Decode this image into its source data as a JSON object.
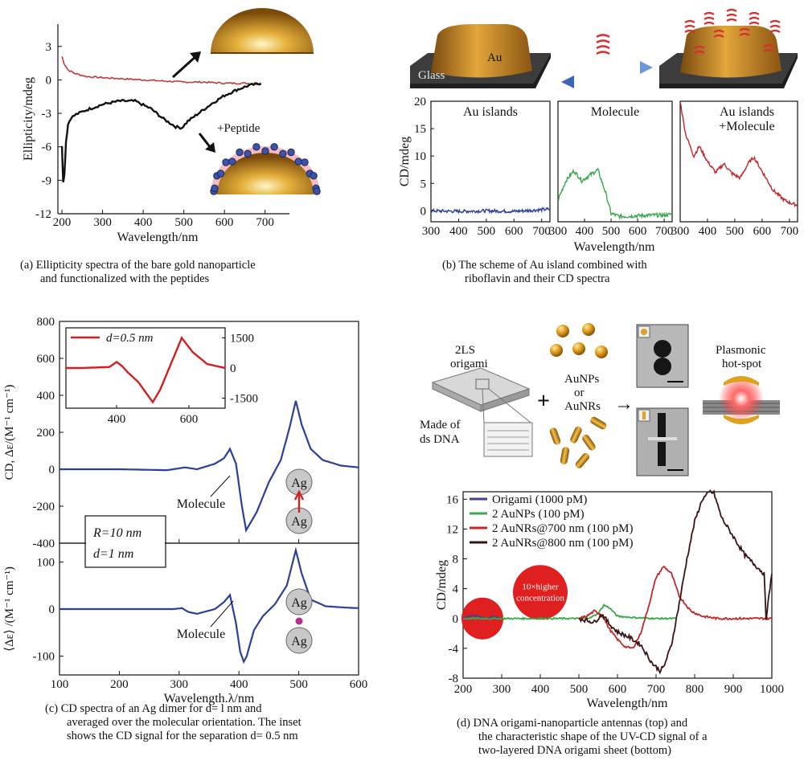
{
  "colors": {
    "red": "#c0393b",
    "black": "#111111",
    "blue": "#2c3f9a",
    "green": "#3aa84a",
    "purple": "#4a3f8e",
    "dred": "#c0282a",
    "brown": "#3a1414",
    "gold": "#c88a1a"
  },
  "panels": {
    "a": {
      "caption": [
        "(a) Ellipticity spectra of the bare gold nanoparticle",
        "and functionalized with the peptides"
      ],
      "annotation": "+Peptide"
    },
    "b": {
      "caption": [
        "(b) The scheme of Au island combined with",
        "riboflavin and their CD spectra"
      ],
      "scheme_labels": {
        "glass": "Glass",
        "au": "Au"
      }
    },
    "c": {
      "caption": [
        "(c) CD spectra of an Ag dimer for d= l nm and",
        "averaged over the molecular orientation. The inset",
        "shows the CD signal for the separation d= 0.5 nm"
      ],
      "molecule_label": "Molecule",
      "params": [
        "R=10 nm",
        "d=1 nm"
      ],
      "ag_label": "Ag"
    },
    "d": {
      "caption": [
        "(d) DNA origami-nanoparticle antennas (top) and",
        "the characteristic shape of the UV-CD signal of a",
        "two-layered DNA origami sheet (bottom)"
      ],
      "scheme_labels": {
        "origami": [
          "2LS",
          "origami"
        ],
        "dsdna": [
          "Made of",
          "ds DNA"
        ],
        "particles": [
          "AuNPs",
          "or",
          "AuNRs"
        ],
        "hotspot": [
          "Plasmonic",
          "hot-spot"
        ],
        "plus": "+",
        "arrow": "→"
      },
      "circle_note": [
        "10×higher",
        "concentration"
      ]
    }
  },
  "chart_data": [
    {
      "id": "a",
      "type": "line",
      "xlabel": "Wavelength/nm",
      "ylabel": "Ellipticity/mdeg",
      "xlim": [
        190,
        760
      ],
      "ylim": [
        -12,
        5
      ],
      "xticks": [
        200,
        300,
        400,
        500,
        600,
        700
      ],
      "yticks": [
        3,
        0,
        -3,
        -6,
        -9,
        -12
      ],
      "series": [
        {
          "color": "#c0393b",
          "x": [
            200,
            205,
            215,
            230,
            260,
            300,
            350,
            400,
            450,
            500,
            550,
            600,
            650,
            690
          ],
          "y": [
            2.1,
            1.5,
            0.9,
            0.6,
            0.3,
            0.2,
            0.1,
            0.0,
            -0.1,
            -0.2,
            -0.2,
            -0.3,
            -0.3,
            -0.4
          ]
        },
        {
          "color": "#111111",
          "x": [
            200,
            203,
            206,
            210,
            215,
            222,
            235,
            260,
            300,
            340,
            380,
            420,
            450,
            480,
            495,
            510,
            540,
            570,
            600,
            630,
            660,
            690
          ],
          "y": [
            -6,
            -9.1,
            -8.5,
            -5.5,
            -4.0,
            -3.4,
            -3.1,
            -2.7,
            -2.2,
            -1.9,
            -1.9,
            -2.6,
            -3.5,
            -4.2,
            -4.3,
            -3.7,
            -2.9,
            -2.1,
            -1.4,
            -0.9,
            -0.5,
            -0.3
          ]
        }
      ]
    },
    {
      "id": "b",
      "type": "line",
      "ylabel": "CD/mdeg",
      "xlabel": "Wavelength/nm",
      "ylim": [
        -2,
        20
      ],
      "yticks": [
        0,
        5,
        10,
        15,
        20
      ],
      "xticks": [
        300,
        400,
        500,
        600,
        700
      ],
      "xlim": [
        300,
        730
      ],
      "subplots": [
        {
          "title": [
            "Au islands"
          ],
          "color": "#2c3f9a",
          "x": [
            300,
            400,
            500,
            600,
            700,
            730
          ],
          "y": [
            0.0,
            -0.1,
            0.0,
            -0.1,
            0.2,
            0.3
          ]
        },
        {
          "title": [
            "Molecule"
          ],
          "color": "#3aa84a",
          "x": [
            300,
            330,
            360,
            390,
            420,
            450,
            480,
            500,
            530,
            560,
            600,
            650,
            700,
            730
          ],
          "y": [
            2.0,
            5.5,
            7.3,
            5.5,
            6.5,
            7.5,
            3.2,
            -0.5,
            -1.0,
            -1.0,
            -0.9,
            -0.8,
            -0.8,
            -0.6
          ]
        },
        {
          "title": [
            "Au islands",
            "+Molecule"
          ],
          "color": "#c0282a",
          "x": [
            300,
            320,
            350,
            370,
            400,
            430,
            460,
            490,
            520,
            550,
            570,
            600,
            640,
            680,
            700,
            730
          ],
          "y": [
            20,
            14,
            10,
            11.8,
            9.0,
            7.0,
            8.6,
            6.8,
            6.0,
            8.7,
            9.8,
            7.2,
            3.8,
            2.0,
            1.5,
            1.0
          ]
        }
      ]
    },
    {
      "id": "c",
      "type": "line",
      "xlabel": "Wavelength.λ/nm",
      "xlim": [
        100,
        600
      ],
      "xticks": [
        100,
        200,
        300,
        400,
        500,
        600
      ],
      "subplots": [
        {
          "ylabel": "CD, Δε/(M⁻¹ cm⁻¹)",
          "ylim": [
            -400,
            800
          ],
          "yticks": [
            800,
            600,
            400,
            200,
            0,
            -200,
            -400
          ],
          "color": "#2c3f9a",
          "x": [
            100,
            200,
            280,
            300,
            310,
            330,
            360,
            375,
            385,
            395,
            405,
            412,
            430,
            450,
            470,
            485,
            495,
            505,
            520,
            540,
            570,
            600
          ],
          "y": [
            0,
            0,
            -5,
            5,
            10,
            0,
            30,
            60,
            110,
            30,
            -200,
            -330,
            -230,
            -70,
            50,
            230,
            370,
            240,
            110,
            50,
            20,
            10
          ]
        },
        {
          "ylabel": "⟨Δε⟩ /(M⁻¹ cm⁻¹)",
          "ylim": [
            -140,
            140
          ],
          "yticks": [
            100,
            0,
            -100
          ],
          "color": "#2c3f9a",
          "x": [
            100,
            200,
            290,
            305,
            315,
            330,
            345,
            360,
            375,
            385,
            395,
            402,
            408,
            413,
            425,
            440,
            460,
            480,
            495,
            505,
            520,
            545,
            580,
            600
          ],
          "y": [
            0,
            0,
            0,
            2,
            -6,
            -10,
            -5,
            0,
            15,
            30,
            -30,
            -90,
            -112,
            -100,
            -45,
            -15,
            10,
            50,
            125,
            75,
            20,
            6,
            3,
            2
          ]
        }
      ],
      "inset": {
        "label": "d=0.5 nm",
        "color": "#d02020",
        "xlim": [
          260,
          700
        ],
        "xticks": [
          400,
          600
        ],
        "ylim": [
          -2000,
          2000
        ],
        "yticks": [
          1500,
          0,
          -1500
        ],
        "x": [
          260,
          300,
          380,
          400,
          415,
          430,
          460,
          500,
          520,
          550,
          580,
          610,
          650,
          700
        ],
        "y": [
          0,
          0,
          50,
          300,
          100,
          -200,
          -700,
          -1700,
          -1100,
          200,
          1500,
          800,
          200,
          0
        ]
      }
    },
    {
      "id": "d",
      "type": "line",
      "xlabel": "Wavelength/nm",
      "ylabel": "CD/mdeg",
      "xlim": [
        200,
        1000
      ],
      "ylim": [
        -8,
        17
      ],
      "xticks": [
        200,
        300,
        400,
        500,
        600,
        700,
        800,
        900,
        1000
      ],
      "yticks": [
        16,
        12,
        8,
        4,
        0,
        -4,
        -8
      ],
      "legend_position": "top-left",
      "series": [
        {
          "name": "Origami (1000 pM)",
          "color": "#4a3f8e",
          "x": [
            200,
            220,
            240,
            260,
            280,
            300
          ],
          "y": [
            0,
            0.4,
            0.3,
            0.0,
            0.2,
            0.0
          ]
        },
        {
          "name": "2 AuNPs (100 pM)",
          "color": "#3aa84a",
          "x": [
            200,
            300,
            400,
            500,
            530,
            550,
            565,
            580,
            600,
            650,
            700,
            750
          ],
          "y": [
            0,
            0,
            0,
            0,
            0.1,
            0.7,
            1.8,
            1.4,
            0.3,
            0.1,
            0,
            0
          ]
        },
        {
          "name": "2 AuNRs@700 nm (100 pM)",
          "color": "#c0282a",
          "x": [
            500,
            520,
            540,
            560,
            580,
            600,
            620,
            640,
            660,
            680,
            700,
            720,
            740,
            760,
            790,
            820,
            860,
            900,
            950,
            1000
          ],
          "y": [
            0,
            0.3,
            1.0,
            0.5,
            -1.5,
            -2.8,
            -3.8,
            -4.0,
            -2.0,
            1.5,
            5.5,
            7.0,
            6.0,
            3.0,
            1.0,
            0.3,
            0.0,
            0.0,
            0.0,
            0.0
          ]
        },
        {
          "name": "2 AuNRs@800 nm (100 pM)",
          "color": "#3a1414",
          "x": [
            500,
            540,
            560,
            580,
            600,
            630,
            660,
            690,
            710,
            720,
            740,
            760,
            780,
            800,
            820,
            840,
            850,
            870,
            900,
            930,
            960,
            980,
            985,
            1000
          ],
          "y": [
            0,
            -0.5,
            0.6,
            -0.8,
            -1.8,
            -2.5,
            -3.5,
            -6.0,
            -7.0,
            -6.5,
            -3.5,
            2.0,
            8.0,
            13.0,
            16.0,
            17.0,
            16.8,
            13.5,
            11.0,
            8.5,
            7.0,
            6.0,
            0.0,
            6.0
          ]
        }
      ]
    }
  ]
}
